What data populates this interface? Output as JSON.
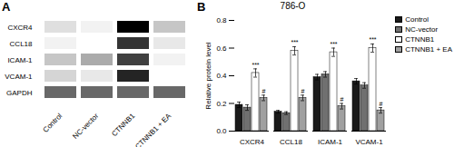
{
  "chart_data": [
    {
      "type": "heatmap",
      "panel_label": "A",
      "x": [
        "Control",
        "NC-vector",
        "CTNNB1",
        "CTNNB1 + EA"
      ],
      "y": [
        "CXCR4",
        "CCL18",
        "ICAM-1",
        "VCAM-1",
        "GAPDH"
      ],
      "values": [
        [
          0.45,
          0.38,
          0.92,
          0.52
        ],
        [
          0.38,
          0.32,
          0.82,
          0.42
        ],
        [
          0.52,
          0.58,
          0.8,
          0.38
        ],
        [
          0.48,
          0.42,
          0.85,
          0.32
        ],
        [
          0.72,
          0.72,
          0.72,
          0.72
        ]
      ]
    },
    {
      "type": "bar",
      "panel_label": "B",
      "title": "786-O",
      "ylabel": "Relative protein level",
      "categories": [
        "CXCR4",
        "CCL18",
        "ICAM-1",
        "VCAM-1"
      ],
      "series": [
        {
          "name": "Control",
          "color": "#1a1a1a",
          "values": [
            0.19,
            0.14,
            0.39,
            0.36
          ],
          "errors": [
            0.02,
            0.01,
            0.02,
            0.02
          ]
        },
        {
          "name": "NC-vector",
          "color": "#707070",
          "values": [
            0.17,
            0.13,
            0.41,
            0.33
          ],
          "errors": [
            0.02,
            0.01,
            0.02,
            0.02
          ]
        },
        {
          "name": "CTNNB1",
          "color": "#ffffff",
          "values": [
            0.42,
            0.58,
            0.57,
            0.6
          ],
          "errors": [
            0.03,
            0.03,
            0.03,
            0.03
          ]
        },
        {
          "name": "CTNNB1 + EA",
          "color": "#a0a0a0",
          "values": [
            0.24,
            0.24,
            0.18,
            0.15
          ],
          "errors": [
            0.02,
            0.02,
            0.02,
            0.02
          ]
        }
      ],
      "annotations": [
        {
          "category": "CXCR4",
          "series": "CTNNB1",
          "text": "***"
        },
        {
          "category": "CCL18",
          "series": "CTNNB1",
          "text": "***"
        },
        {
          "category": "ICAM-1",
          "series": "CTNNB1",
          "text": "***"
        },
        {
          "category": "VCAM-1",
          "series": "CTNNB1",
          "text": "***"
        },
        {
          "category": "CXCR4",
          "series": "CTNNB1 + EA",
          "text": "#"
        },
        {
          "category": "CCL18",
          "series": "CTNNB1 + EA",
          "text": "#"
        },
        {
          "category": "ICAM-1",
          "series": "CTNNB1 + EA",
          "text": "#"
        },
        {
          "category": "VCAM-1",
          "series": "CTNNB1 + EA",
          "text": "#"
        }
      ],
      "ylim": [
        0,
        0.8
      ],
      "yticks": [
        {
          "value": 0,
          "label": "0.0"
        },
        0.2,
        0.4,
        0.6,
        0.8
      ],
      "legend": "upper right"
    }
  ]
}
